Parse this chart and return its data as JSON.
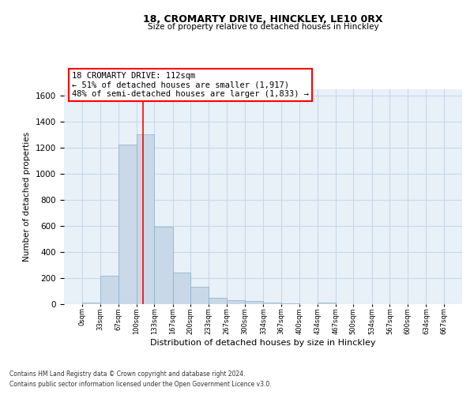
{
  "title_line1": "18, CROMARTY DRIVE, HINCKLEY, LE10 0RX",
  "title_line2": "Size of property relative to detached houses in Hinckley",
  "xlabel": "Distribution of detached houses by size in Hinckley",
  "ylabel": "Number of detached properties",
  "footnote_line1": "Contains HM Land Registry data © Crown copyright and database right 2024.",
  "footnote_line2": "Contains public sector information licensed under the Open Government Licence v3.0.",
  "annotation_line1": "18 CROMARTY DRIVE: 112sqm",
  "annotation_line2": "← 51% of detached houses are smaller (1,917)",
  "annotation_line3": "48% of semi-detached houses are larger (1,833) →",
  "bar_color": "#c8d8e8",
  "bar_edge_color": "#8aafc8",
  "grid_color": "#c8d8e8",
  "bg_color": "#e8f0f8",
  "red_line_color": "red",
  "property_size_sqm": 112,
  "bin_edges": [
    0,
    33,
    67,
    100,
    133,
    167,
    200,
    233,
    267,
    300,
    334,
    367,
    400,
    434,
    467,
    500,
    534,
    567,
    600,
    634,
    667
  ],
  "bar_heights": [
    10,
    220,
    1225,
    1300,
    595,
    240,
    135,
    50,
    30,
    25,
    15,
    5,
    0,
    10,
    0,
    0,
    0,
    0,
    0,
    0
  ],
  "ylim": [
    0,
    1650
  ],
  "yticks": [
    0,
    200,
    400,
    600,
    800,
    1000,
    1200,
    1400,
    1600
  ],
  "annotation_box_color": "white",
  "annotation_box_edge_color": "red"
}
